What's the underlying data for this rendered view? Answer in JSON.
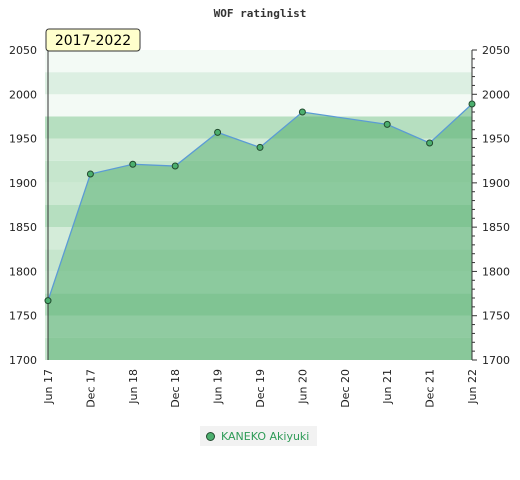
{
  "chart_data": {
    "type": "area",
    "title": "WOF ratinglist",
    "badge": "2017-2022",
    "ylim": [
      1700,
      2050
    ],
    "yticks": [
      1700,
      1750,
      1800,
      1850,
      1900,
      1950,
      2000,
      2050
    ],
    "x_labels": [
      "Jun 17",
      "Dec 17",
      "Jun 18",
      "Dec 18",
      "Jun 19",
      "Dec 19",
      "Jun 20",
      "Dec 20",
      "Jun 21",
      "Dec 21",
      "Jun 22"
    ],
    "series": [
      {
        "name": "KANEKO Akiyuki",
        "points": [
          {
            "x": 0.0,
            "y": 1767
          },
          {
            "x": 1.0,
            "y": 1910
          },
          {
            "x": 2.0,
            "y": 1921
          },
          {
            "x": 3.0,
            "y": 1919
          },
          {
            "x": 4.0,
            "y": 1957
          },
          {
            "x": 5.0,
            "y": 1940
          },
          {
            "x": 6.0,
            "y": 1980
          },
          {
            "x": 8.0,
            "y": 1966
          },
          {
            "x": 9.0,
            "y": 1945
          },
          {
            "x": 10.0,
            "y": 1989
          }
        ]
      }
    ],
    "grid": true,
    "legend_position": "bottom-center",
    "colors": {
      "line": "#5b9bd5",
      "marker": "#4caf6e",
      "area": "#3da35d"
    }
  }
}
